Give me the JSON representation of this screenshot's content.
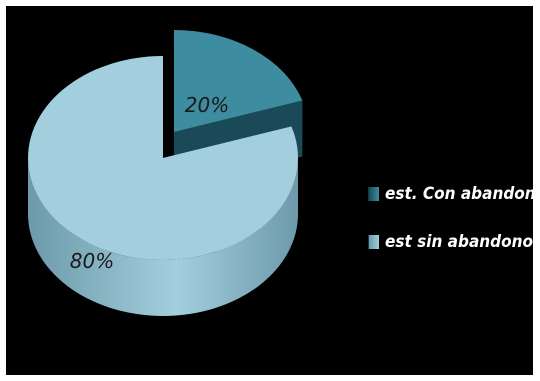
{
  "chart_data": {
    "type": "pie",
    "categories": [
      "est. Con abandono",
      "est sin abandono"
    ],
    "values": [
      20,
      80
    ],
    "data_labels": [
      "20%",
      "80%"
    ],
    "legend_placement": "right",
    "colors": {
      "slice_top": [
        "#3d8ca0",
        "#a2cedd"
      ],
      "slice_side": [
        "#1a4a57",
        "#6d9aaa"
      ],
      "background": "#000000"
    }
  }
}
